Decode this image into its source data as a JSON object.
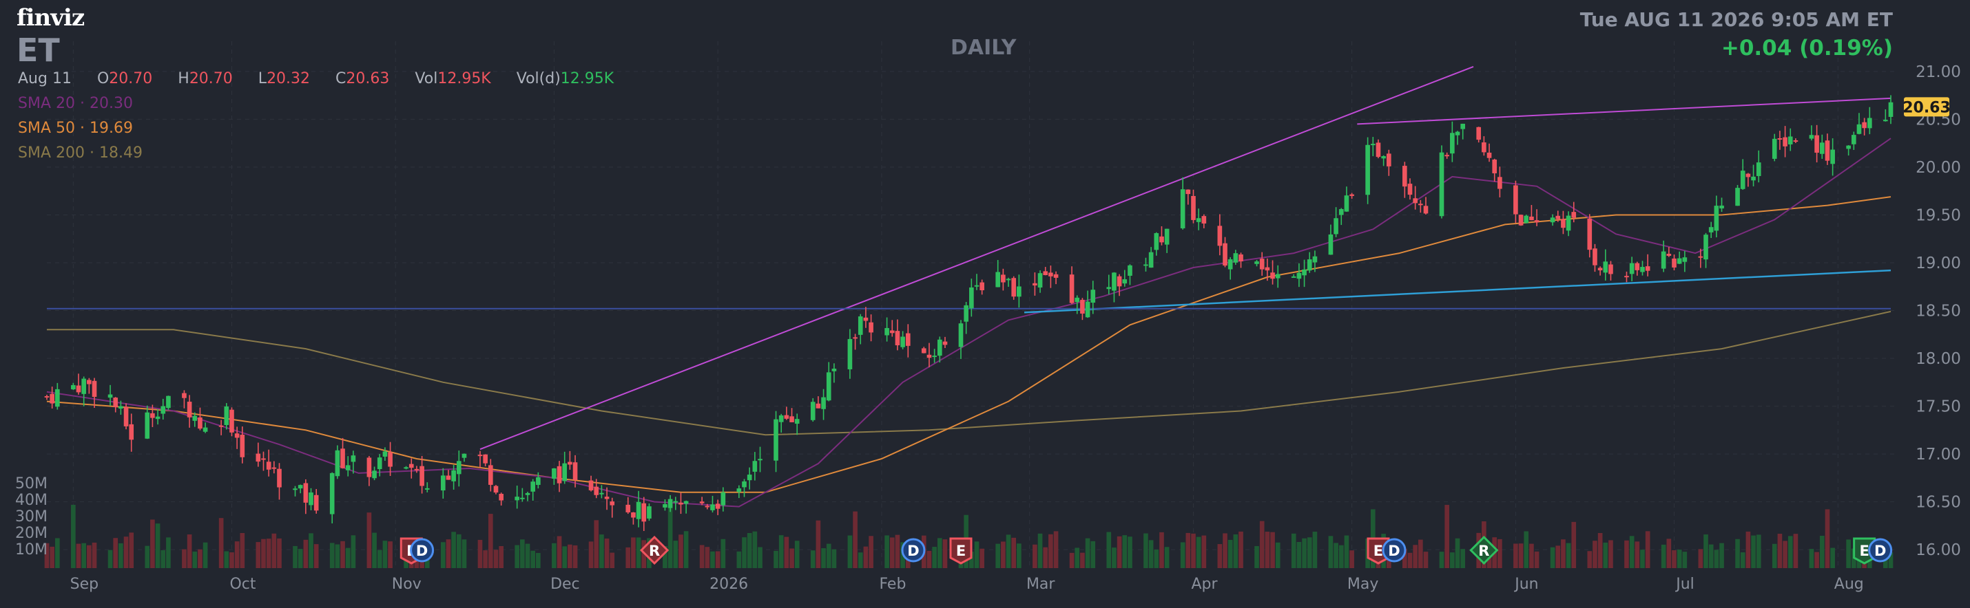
{
  "header": {
    "logo": "finviz",
    "ticker": "ET",
    "interval": "DAILY",
    "datetime": "Tue AUG 11 2026 9:05 AM ET",
    "change": "+0.04 (0.19%)"
  },
  "ohlc": {
    "date": "Aug 11",
    "open_label": "O",
    "open": "20.70",
    "high_label": "H",
    "high": "20.70",
    "low_label": "L",
    "low": "20.32",
    "close_label": "C",
    "close": "20.63",
    "vol_label": "Vol",
    "vol": "12.95K",
    "vold_label": "Vol(d)",
    "vold": "12.95K"
  },
  "indicators": [
    {
      "label": "SMA 20",
      "value": "20.30",
      "color": "#7b2d7e"
    },
    {
      "label": "SMA 50",
      "value": "19.69",
      "color": "#e08a3c"
    },
    {
      "label": "SMA 200",
      "value": "18.49",
      "color": "#8a7a4a"
    }
  ],
  "colors": {
    "up": "#2fbf5f",
    "down": "#f0555f",
    "volume_up": "#1e5a34",
    "volume_down": "#6e2a33",
    "trendline": "#c04cd6",
    "support": "#2f9fd6",
    "hline": "#3b4fa0",
    "price_badge": "#f5c542"
  },
  "chart_data": {
    "type": "candlestick",
    "ylim": [
      15.85,
      21.1
    ],
    "y_ticks": [
      "21.00",
      "20.50",
      "20.00",
      "19.50",
      "19.00",
      "18.50",
      "18.00",
      "17.50",
      "17.00",
      "16.50",
      "16.00"
    ],
    "last_price": "20.63",
    "x_labels": [
      {
        "label": "Sep",
        "date": "2025-09-01"
      },
      {
        "label": "Oct",
        "date": "2025-10-01"
      },
      {
        "label": "Nov",
        "date": "2025-11-01"
      },
      {
        "label": "Dec",
        "date": "2025-12-01"
      },
      {
        "label": "2026",
        "date": "2026-01-01"
      },
      {
        "label": "Feb",
        "date": "2026-02-01"
      },
      {
        "label": "Mar",
        "date": "2026-03-01"
      },
      {
        "label": "Apr",
        "date": "2026-04-01"
      },
      {
        "label": "May",
        "date": "2026-05-01"
      },
      {
        "label": "Jun",
        "date": "2026-06-01"
      },
      {
        "label": "Jul",
        "date": "2026-07-01"
      },
      {
        "label": "Aug",
        "date": "2026-08-01"
      }
    ],
    "volume_ticks": [
      "50M",
      "40M",
      "30M",
      "20M",
      "10M"
    ],
    "price_path": [
      [
        "2025-08-27",
        17.6
      ],
      [
        "2025-09-03",
        17.75
      ],
      [
        "2025-09-08",
        17.6
      ],
      [
        "2025-09-12",
        17.2
      ],
      [
        "2025-09-17",
        17.5
      ],
      [
        "2025-09-22",
        17.55
      ],
      [
        "2025-09-26",
        17.25
      ],
      [
        "2025-09-30",
        17.45
      ],
      [
        "2025-10-03",
        17.05
      ],
      [
        "2025-10-08",
        16.85
      ],
      [
        "2025-10-13",
        16.6
      ],
      [
        "2025-10-17",
        16.5
      ],
      [
        "2025-10-21",
        16.95
      ],
      [
        "2025-10-27",
        16.85
      ],
      [
        "2025-10-31",
        16.95
      ],
      [
        "2025-11-04",
        16.8
      ],
      [
        "2025-11-08",
        16.6
      ],
      [
        "2025-11-13",
        17.0
      ],
      [
        "2025-11-17",
        16.95
      ],
      [
        "2025-11-21",
        16.6
      ],
      [
        "2025-11-25",
        16.55
      ],
      [
        "2025-11-30",
        16.8
      ],
      [
        "2025-12-05",
        16.8
      ],
      [
        "2025-12-10",
        16.65
      ],
      [
        "2025-12-15",
        16.45
      ],
      [
        "2025-12-19",
        16.35
      ],
      [
        "2025-12-24",
        16.45
      ],
      [
        "2025-12-30",
        16.5
      ],
      [
        "2026-01-05",
        16.55
      ],
      [
        "2026-01-08",
        16.95
      ],
      [
        "2026-01-12",
        17.3
      ],
      [
        "2026-01-16",
        17.45
      ],
      [
        "2026-01-20",
        17.5
      ],
      [
        "2026-01-24",
        18.0
      ],
      [
        "2026-01-28",
        18.4
      ],
      [
        "2026-02-01",
        18.3
      ],
      [
        "2026-02-05",
        18.2
      ],
      [
        "2026-02-09",
        17.95
      ],
      [
        "2026-02-13",
        18.2
      ],
      [
        "2026-02-18",
        18.65
      ],
      [
        "2026-02-22",
        18.95
      ],
      [
        "2026-02-27",
        18.7
      ],
      [
        "2026-03-04",
        18.95
      ],
      [
        "2026-03-08",
        18.6
      ],
      [
        "2026-03-12",
        18.55
      ],
      [
        "2026-03-16",
        18.8
      ],
      [
        "2026-03-21",
        18.9
      ],
      [
        "2026-03-26",
        19.3
      ],
      [
        "2026-03-30",
        19.7
      ],
      [
        "2026-04-03",
        19.35
      ],
      [
        "2026-04-07",
        19.0
      ],
      [
        "2026-04-12",
        19.2
      ],
      [
        "2026-04-16",
        18.8
      ],
      [
        "2026-04-20",
        18.95
      ],
      [
        "2026-04-25",
        19.1
      ],
      [
        "2026-04-29",
        19.5
      ],
      [
        "2026-05-03",
        20.1
      ],
      [
        "2026-05-07",
        20.2
      ],
      [
        "2026-05-11",
        19.85
      ],
      [
        "2026-05-15",
        19.6
      ],
      [
        "2026-05-19",
        20.2
      ],
      [
        "2026-05-23",
        20.4
      ],
      [
        "2026-05-27",
        20.05
      ],
      [
        "2026-05-31",
        19.6
      ],
      [
        "2026-06-04",
        19.35
      ],
      [
        "2026-06-08",
        19.5
      ],
      [
        "2026-06-12",
        19.4
      ],
      [
        "2026-06-16",
        19.05
      ],
      [
        "2026-06-20",
        18.85
      ],
      [
        "2026-06-24",
        18.9
      ],
      [
        "2026-06-28",
        19.1
      ],
      [
        "2026-07-02",
        19.0
      ],
      [
        "2026-07-06",
        19.15
      ],
      [
        "2026-07-10",
        19.6
      ],
      [
        "2026-07-14",
        19.9
      ],
      [
        "2026-07-18",
        20.1
      ],
      [
        "2026-07-22",
        20.3
      ],
      [
        "2026-07-26",
        20.35
      ],
      [
        "2026-07-30",
        20.15
      ],
      [
        "2026-08-03",
        20.3
      ],
      [
        "2026-08-07",
        20.45
      ],
      [
        "2026-08-11",
        20.63
      ]
    ],
    "sma20_path": [
      [
        "2025-08-27",
        17.65
      ],
      [
        "2025-09-20",
        17.45
      ],
      [
        "2025-10-10",
        17.1
      ],
      [
        "2025-10-25",
        16.8
      ],
      [
        "2025-11-15",
        16.85
      ],
      [
        "2025-12-01",
        16.75
      ],
      [
        "2025-12-20",
        16.5
      ],
      [
        "2026-01-05",
        16.45
      ],
      [
        "2026-01-20",
        16.9
      ],
      [
        "2026-02-05",
        17.75
      ],
      [
        "2026-02-25",
        18.4
      ],
      [
        "2026-03-15",
        18.65
      ],
      [
        "2026-04-01",
        18.95
      ],
      [
        "2026-04-20",
        19.1
      ],
      [
        "2026-05-05",
        19.35
      ],
      [
        "2026-05-20",
        19.9
      ],
      [
        "2026-06-05",
        19.8
      ],
      [
        "2026-06-20",
        19.3
      ],
      [
        "2026-07-05",
        19.1
      ],
      [
        "2026-07-20",
        19.45
      ],
      [
        "2026-08-11",
        20.3
      ]
    ],
    "sma50_path": [
      [
        "2025-08-27",
        17.55
      ],
      [
        "2025-09-20",
        17.45
      ],
      [
        "2025-10-15",
        17.25
      ],
      [
        "2025-11-05",
        16.95
      ],
      [
        "2025-12-01",
        16.75
      ],
      [
        "2025-12-25",
        16.6
      ],
      [
        "2026-01-10",
        16.6
      ],
      [
        "2026-02-01",
        16.95
      ],
      [
        "2026-02-25",
        17.55
      ],
      [
        "2026-03-20",
        18.35
      ],
      [
        "2026-04-15",
        18.85
      ],
      [
        "2026-05-10",
        19.1
      ],
      [
        "2026-05-30",
        19.4
      ],
      [
        "2026-06-20",
        19.5
      ],
      [
        "2026-07-10",
        19.5
      ],
      [
        "2026-07-30",
        19.6
      ],
      [
        "2026-08-11",
        19.69
      ]
    ],
    "sma200_path": [
      [
        "2025-08-27",
        18.3
      ],
      [
        "2025-09-20",
        18.3
      ],
      [
        "2025-10-15",
        18.1
      ],
      [
        "2025-11-10",
        17.75
      ],
      [
        "2025-12-10",
        17.45
      ],
      [
        "2026-01-10",
        17.2
      ],
      [
        "2026-02-10",
        17.25
      ],
      [
        "2026-03-10",
        17.35
      ],
      [
        "2026-04-10",
        17.45
      ],
      [
        "2026-05-10",
        17.65
      ],
      [
        "2026-06-10",
        17.9
      ],
      [
        "2026-07-10",
        18.1
      ],
      [
        "2026-08-11",
        18.49
      ]
    ],
    "trendlines": [
      {
        "name": "upper-channel",
        "from": [
          "2025-11-17",
          17.05
        ],
        "to": [
          "2026-05-24",
          21.05
        ]
      },
      {
        "name": "resistance",
        "from": [
          "2026-05-02",
          20.45
        ],
        "to": [
          "2026-08-11",
          20.72
        ]
      },
      {
        "name": "support",
        "from": [
          "2026-02-28",
          18.48
        ],
        "to": [
          "2026-08-11",
          18.92
        ]
      },
      {
        "name": "horizontal",
        "from": [
          "2025-08-27",
          18.52
        ],
        "to": [
          "2026-08-11",
          18.52
        ]
      }
    ],
    "events": [
      {
        "symbol": "E",
        "date": "2025-11-04",
        "type": "earnings"
      },
      {
        "symbol": "D",
        "date": "2025-11-06",
        "type": "dividend"
      },
      {
        "symbol": "R",
        "date": "2025-12-20",
        "type": "revision"
      },
      {
        "symbol": "D",
        "date": "2026-02-07",
        "type": "dividend"
      },
      {
        "symbol": "E",
        "date": "2026-02-16",
        "type": "earnings"
      },
      {
        "symbol": "E",
        "date": "2026-05-06",
        "type": "earnings"
      },
      {
        "symbol": "D",
        "date": "2026-05-09",
        "type": "dividend"
      },
      {
        "symbol": "R",
        "date": "2026-05-26",
        "type": "revision"
      },
      {
        "symbol": "E",
        "date": "2026-08-06",
        "type": "earnings"
      },
      {
        "symbol": "D",
        "date": "2026-08-09",
        "type": "dividend"
      }
    ]
  }
}
